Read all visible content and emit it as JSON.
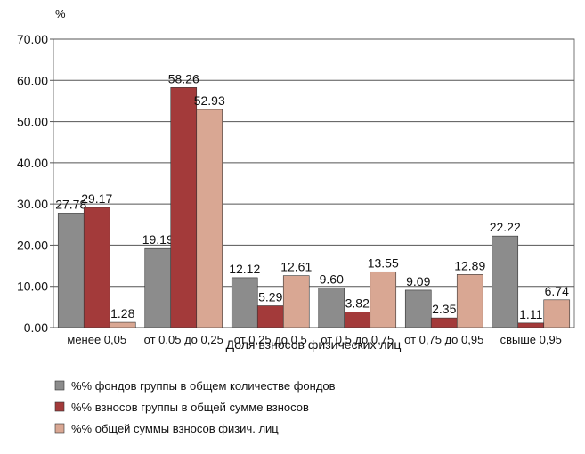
{
  "chart_data": {
    "type": "bar",
    "ylabel": "%",
    "xlabel": "Доля взносов физических лиц",
    "categories": [
      "менее 0,05",
      "от 0,05 до 0,25",
      "от 0,25 до 0,5",
      "от 0,5 до 0,75",
      "от 0,75 до 0,95",
      "свыше 0,95"
    ],
    "series": [
      {
        "name": "%% фондов группы в общем количестве фондов",
        "color": "#8c8c8c",
        "values": [
          27.78,
          19.19,
          12.12,
          9.6,
          9.09,
          22.22
        ],
        "value_labels": [
          "27.78",
          "19.19",
          "12.12",
          "9.60",
          "9.09",
          "22.22"
        ]
      },
      {
        "name": "%% взносов группы в общей сумме взносов",
        "color": "#a33a3a",
        "values": [
          29.17,
          58.26,
          5.29,
          3.82,
          2.35,
          1.11
        ],
        "value_labels": [
          "29.17",
          "58.26",
          "5.29",
          "3.82",
          "2.35",
          "1.11"
        ]
      },
      {
        "name": "%% общей суммы взносов физич. лиц",
        "color": "#d9a793",
        "values": [
          1.28,
          52.93,
          12.61,
          13.55,
          12.89,
          6.74
        ],
        "value_labels": [
          "1.28",
          "52.93",
          "12.61",
          "13.55",
          "12.89",
          "6.74"
        ]
      }
    ],
    "ylim": [
      0,
      70
    ],
    "yticks": [
      {
        "value": 0,
        "label": "0.00"
      },
      {
        "value": 10,
        "label": "10.00"
      },
      {
        "value": 20,
        "label": "20.00"
      },
      {
        "value": 30,
        "label": "30.00"
      },
      {
        "value": 40,
        "label": "40.00"
      },
      {
        "value": 50,
        "label": "50.00"
      },
      {
        "value": 60,
        "label": "60.00"
      },
      {
        "value": 70,
        "label": "70.00"
      }
    ],
    "grid": true
  }
}
